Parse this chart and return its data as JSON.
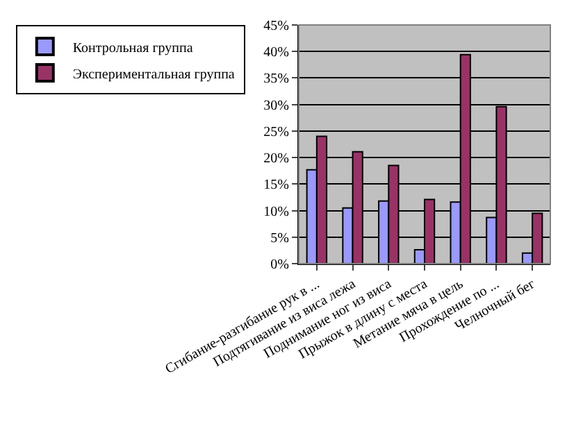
{
  "chart_data": {
    "type": "bar",
    "categories": [
      "Сгибание-разгибание рук в ...",
      "Подтягивание из виса лежа",
      "Поднимание ног из виса",
      "Прыжок в длину с места",
      "Метание мяча в цель",
      "Прохождение по ...",
      "Челночный бег"
    ],
    "series": [
      {
        "name": "Контрольная группа",
        "color": "#9999ff",
        "values": [
          17.7,
          10.5,
          11.8,
          2.6,
          11.6,
          8.7,
          2.0
        ]
      },
      {
        "name": "Экспериментальная группа",
        "color": "#993366",
        "values": [
          24.0,
          21.1,
          18.5,
          12.1,
          39.4,
          29.6,
          9.5
        ]
      }
    ],
    "ylim": [
      0,
      45
    ],
    "yticks": [
      {
        "value": 0,
        "label": "0%"
      },
      {
        "value": 5,
        "label": "5%"
      },
      {
        "value": 10,
        "label": "10%"
      },
      {
        "value": 15,
        "label": "15%"
      },
      {
        "value": 20,
        "label": "20%"
      },
      {
        "value": 25,
        "label": "25%"
      },
      {
        "value": 30,
        "label": "30%"
      },
      {
        "value": 35,
        "label": "35%"
      },
      {
        "value": 40,
        "label": "40%"
      },
      {
        "value": 45,
        "label": "45%"
      }
    ],
    "grid": "y",
    "legend": "left"
  }
}
